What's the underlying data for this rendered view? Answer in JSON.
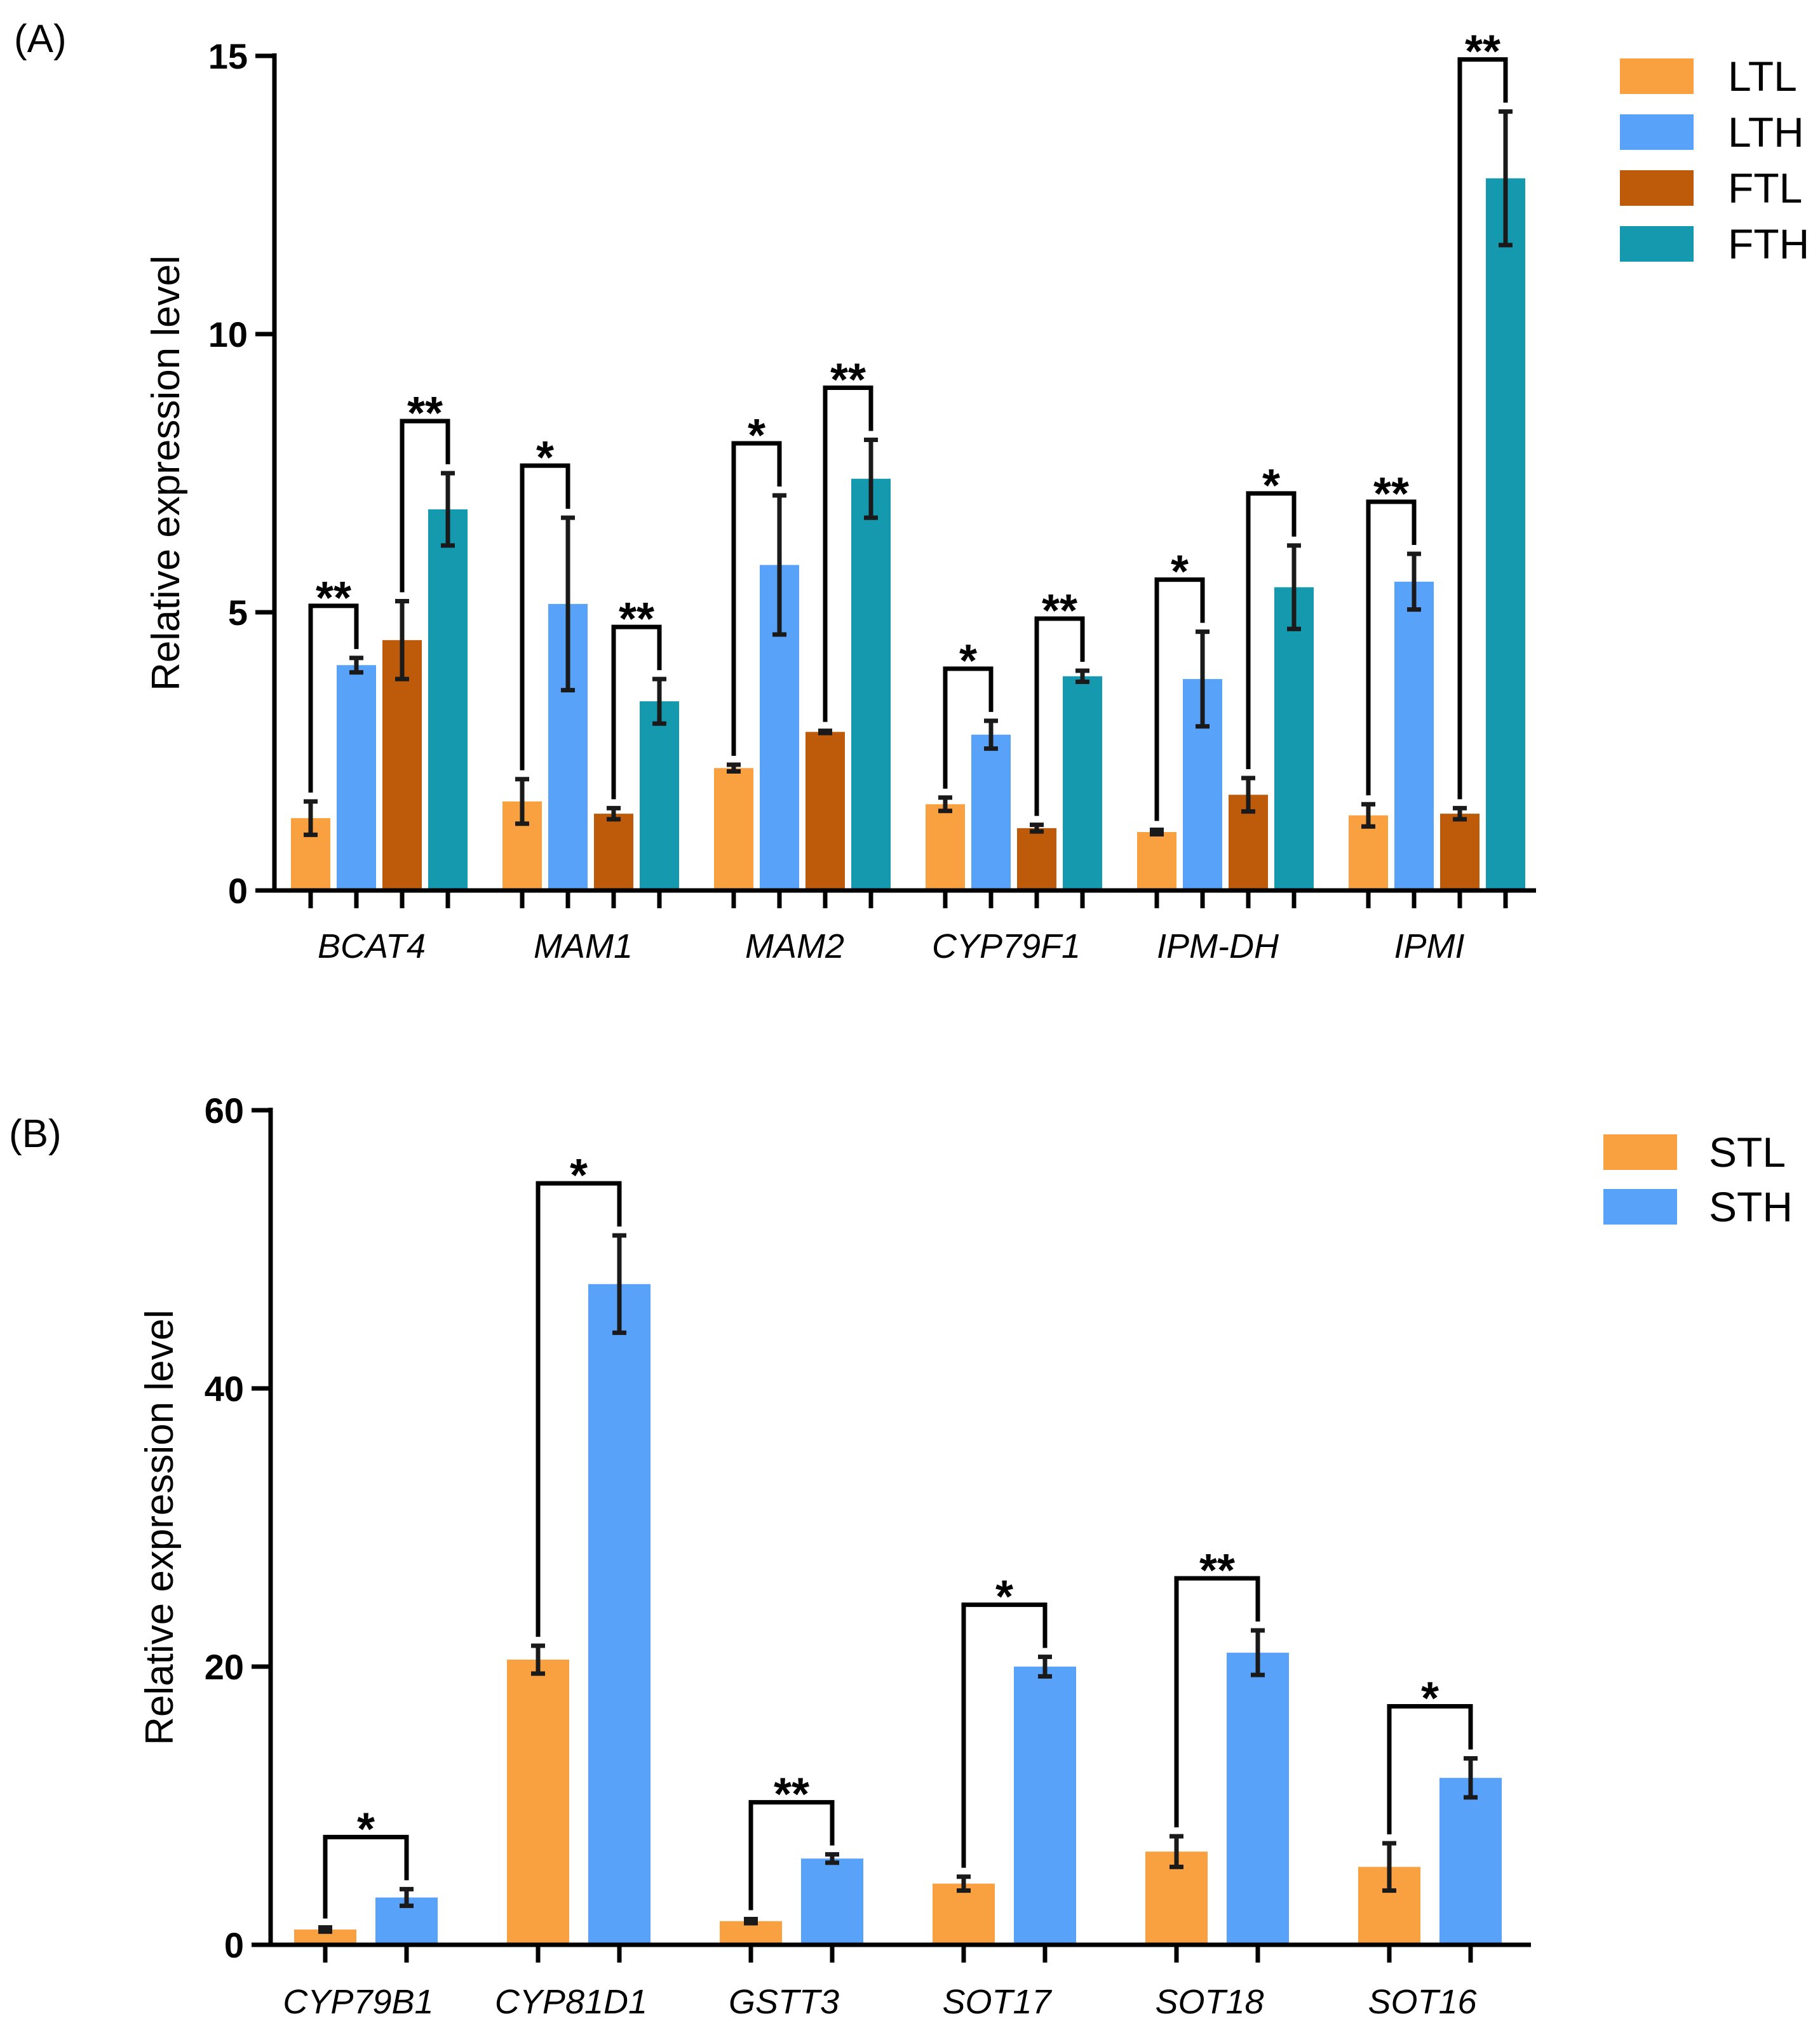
{
  "chart_data": [
    {
      "type": "bar",
      "panel_label": "(A)",
      "ylabel": "Relative expression level",
      "ylim": [
        0,
        15
      ],
      "yticks": [
        0,
        5,
        10,
        15
      ],
      "legend_position": "top-right",
      "categories": [
        "BCAT4",
        "MAM1",
        "MAM2",
        "CYP79F1",
        "IPM-DH",
        "IPMI"
      ],
      "series": [
        {
          "name": "LTL",
          "color": "#F9A040",
          "values": [
            1.3,
            1.6,
            2.2,
            1.55,
            1.05,
            1.35
          ],
          "errors": [
            0.3,
            0.4,
            0.06,
            0.12,
            0.04,
            0.2
          ]
        },
        {
          "name": "LTH",
          "color": "#58A2FA",
          "values": [
            4.05,
            5.15,
            5.85,
            2.8,
            3.8,
            5.55
          ],
          "errors": [
            0.13,
            1.55,
            1.25,
            0.25,
            0.85,
            0.5
          ]
        },
        {
          "name": "FTL",
          "color": "#BD5B0B",
          "values": [
            4.5,
            1.38,
            2.85,
            1.12,
            1.72,
            1.38
          ],
          "errors": [
            0.7,
            0.1,
            0.02,
            0.06,
            0.3,
            0.1
          ]
        },
        {
          "name": "FTH",
          "color": "#1499AE",
          "values": [
            6.85,
            3.4,
            7.4,
            3.85,
            5.45,
            12.8
          ],
          "errors": [
            0.65,
            0.4,
            0.7,
            0.1,
            0.75,
            1.2
          ]
        }
      ],
      "significance": [
        {
          "category": 0,
          "pair": [
            0,
            1
          ],
          "label": "**"
        },
        {
          "category": 0,
          "pair": [
            2,
            3
          ],
          "label": "**"
        },
        {
          "category": 1,
          "pair": [
            0,
            1
          ],
          "label": "*"
        },
        {
          "category": 1,
          "pair": [
            2,
            3
          ],
          "label": "**"
        },
        {
          "category": 2,
          "pair": [
            0,
            1
          ],
          "label": "*"
        },
        {
          "category": 2,
          "pair": [
            2,
            3
          ],
          "label": "**"
        },
        {
          "category": 3,
          "pair": [
            0,
            1
          ],
          "label": "*"
        },
        {
          "category": 3,
          "pair": [
            2,
            3
          ],
          "label": "**"
        },
        {
          "category": 4,
          "pair": [
            0,
            1
          ],
          "label": "*"
        },
        {
          "category": 4,
          "pair": [
            2,
            3
          ],
          "label": "*"
        },
        {
          "category": 5,
          "pair": [
            0,
            1
          ],
          "label": "**"
        },
        {
          "category": 5,
          "pair": [
            2,
            3
          ],
          "label": "**"
        }
      ]
    },
    {
      "type": "bar",
      "panel_label": "(B)",
      "ylabel": "Relative expression level",
      "ylim": [
        0,
        60
      ],
      "yticks": [
        0,
        20,
        40,
        60
      ],
      "legend_position": "top-right",
      "categories": [
        "CYP79B1",
        "CYP81D1",
        "GSTT3",
        "SOT17",
        "SOT18",
        "SOT16"
      ],
      "series": [
        {
          "name": "STL",
          "color": "#F9A040",
          "values": [
            1.1,
            20.5,
            1.7,
            4.4,
            6.7,
            5.6
          ],
          "errors": [
            0.15,
            1.0,
            0.15,
            0.5,
            1.1,
            1.7
          ]
        },
        {
          "name": "STH",
          "color": "#58A2FA",
          "values": [
            3.4,
            47.5,
            6.2,
            20.0,
            21.0,
            12.0
          ],
          "errors": [
            0.6,
            3.5,
            0.3,
            0.7,
            1.6,
            1.4
          ]
        }
      ],
      "significance": [
        {
          "category": 0,
          "pair": [
            0,
            1
          ],
          "label": "*"
        },
        {
          "category": 1,
          "pair": [
            0,
            1
          ],
          "label": "*"
        },
        {
          "category": 2,
          "pair": [
            0,
            1
          ],
          "label": "**"
        },
        {
          "category": 3,
          "pair": [
            0,
            1
          ],
          "label": "*"
        },
        {
          "category": 4,
          "pair": [
            0,
            1
          ],
          "label": "**"
        },
        {
          "category": 5,
          "pair": [
            0,
            1
          ],
          "label": "*"
        }
      ]
    }
  ]
}
